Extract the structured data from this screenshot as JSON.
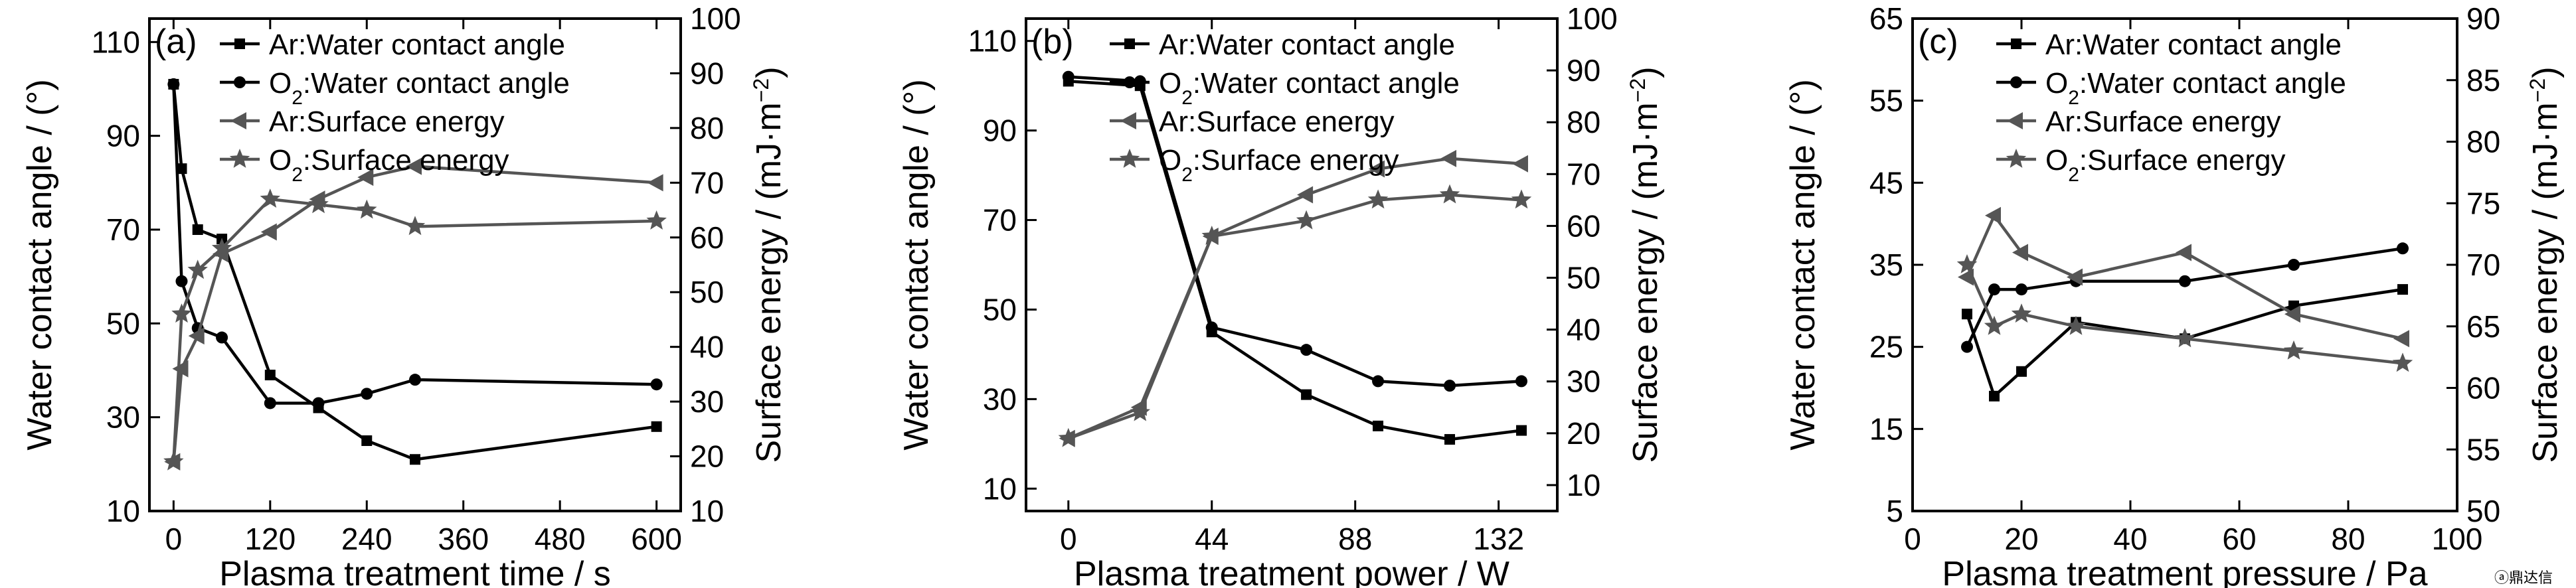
{
  "chart_data": [
    {
      "type": "line",
      "panel_label": "(a)",
      "xlabel": "Plasma treatment time / s",
      "ylabel_left": "Water contact angle / (°)",
      "ylabel_right": "Surface energy / (mJ·m⁻²)",
      "xlim": [
        -30,
        630
      ],
      "xticks": [
        0,
        120,
        240,
        360,
        480,
        600
      ],
      "ylim_left": [
        10,
        115
      ],
      "yticks_left": [
        10,
        30,
        50,
        70,
        90,
        110
      ],
      "ylim_right": [
        10,
        100
      ],
      "yticks_right": [
        10,
        20,
        30,
        40,
        50,
        60,
        70,
        80,
        90,
        100
      ],
      "legend_placement": "top-left",
      "grid": false,
      "series": [
        {
          "name": "Ar:Water contact angle",
          "axis": "left",
          "marker": "square",
          "color": "#000000",
          "x": [
            0,
            10,
            30,
            60,
            120,
            180,
            240,
            300,
            600
          ],
          "y": [
            101,
            83,
            70,
            68,
            39,
            32,
            25,
            21,
            28
          ]
        },
        {
          "name": "O2:Water contact angle",
          "axis": "left",
          "marker": "circle",
          "color": "#000000",
          "x": [
            0,
            10,
            30,
            60,
            120,
            180,
            240,
            300,
            600
          ],
          "y": [
            101,
            59,
            49,
            47,
            33,
            33,
            35,
            38,
            37
          ]
        },
        {
          "name": "Ar:Surface energy",
          "axis": "right",
          "marker": "triangle-left",
          "color": "#555555",
          "x": [
            0,
            10,
            30,
            60,
            120,
            180,
            240,
            300,
            600
          ],
          "y": [
            19,
            36,
            42,
            57,
            61,
            67,
            71,
            73,
            70
          ]
        },
        {
          "name": "O2:Surface energy",
          "axis": "right",
          "marker": "star",
          "color": "#555555",
          "x": [
            0,
            10,
            30,
            60,
            120,
            180,
            240,
            300,
            600
          ],
          "y": [
            19,
            46,
            54,
            58,
            67,
            66,
            65,
            62,
            63
          ]
        }
      ]
    },
    {
      "type": "line",
      "panel_label": "(b)",
      "xlabel": "Plasma treatment power / W",
      "ylabel_left": "Water contact angle / (°)",
      "ylabel_right": "Surface energy / (mJ·m⁻²)",
      "xlim": [
        -13,
        150
      ],
      "xticks": [
        0,
        44,
        88,
        132
      ],
      "ylim_left": [
        5,
        115
      ],
      "yticks_left": [
        10,
        30,
        50,
        70,
        90,
        110
      ],
      "ylim_right": [
        5,
        100
      ],
      "yticks_right": [
        10,
        20,
        30,
        40,
        50,
        60,
        70,
        80,
        90,
        100
      ],
      "legend_placement": "top-right",
      "grid": false,
      "series": [
        {
          "name": "Ar:Water contact angle",
          "axis": "left",
          "marker": "square",
          "color": "#000000",
          "x": [
            0,
            22,
            44,
            73,
            95,
            117,
            139
          ],
          "y": [
            101,
            100,
            45,
            31,
            24,
            21,
            23
          ]
        },
        {
          "name": "O2:Water contact angle",
          "axis": "left",
          "marker": "circle",
          "color": "#000000",
          "x": [
            0,
            22,
            44,
            73,
            95,
            117,
            139
          ],
          "y": [
            102,
            101,
            46,
            41,
            34,
            33,
            34
          ]
        },
        {
          "name": "Ar:Surface energy",
          "axis": "right",
          "marker": "triangle-left",
          "color": "#555555",
          "x": [
            0,
            22,
            44,
            73,
            95,
            117,
            139
          ],
          "y": [
            19,
            25,
            58,
            66,
            71,
            73,
            72
          ]
        },
        {
          "name": "O2:Surface energy",
          "axis": "right",
          "marker": "star",
          "color": "#555555",
          "x": [
            0,
            22,
            44,
            73,
            95,
            117,
            139
          ],
          "y": [
            19,
            24,
            58,
            61,
            65,
            66,
            65
          ]
        }
      ]
    },
    {
      "type": "line",
      "panel_label": "(c)",
      "xlabel": "Plasma treatment pressure / Pa",
      "ylabel_left": "Water contact angle / (°)",
      "ylabel_right": "Surface energy / (mJ·m⁻²)",
      "xlim": [
        0,
        100
      ],
      "xticks": [
        0,
        20,
        40,
        60,
        80,
        100
      ],
      "ylim_left": [
        5,
        65
      ],
      "yticks_left": [
        5,
        15,
        25,
        35,
        45,
        55,
        65
      ],
      "ylim_right": [
        50,
        90
      ],
      "yticks_right": [
        50,
        55,
        60,
        65,
        70,
        75,
        80,
        85,
        90
      ],
      "legend_placement": "top-right",
      "grid": false,
      "series": [
        {
          "name": "Ar:Water contact angle",
          "axis": "left",
          "marker": "square",
          "color": "#000000",
          "x": [
            10,
            15,
            20,
            30,
            50,
            70,
            90
          ],
          "y": [
            29,
            19,
            22,
            28,
            26,
            30,
            32
          ]
        },
        {
          "name": "O2:Water contact angle",
          "axis": "left",
          "marker": "circle",
          "color": "#000000",
          "x": [
            10,
            15,
            20,
            30,
            50,
            70,
            90
          ],
          "y": [
            25,
            32,
            32,
            33,
            33,
            35,
            37
          ]
        },
        {
          "name": "Ar:Surface energy",
          "axis": "right",
          "marker": "triangle-left",
          "color": "#555555",
          "x": [
            10,
            15,
            20,
            30,
            50,
            70,
            90
          ],
          "y": [
            69,
            74,
            71,
            69,
            71,
            66,
            64
          ]
        },
        {
          "name": "O2:Surface energy",
          "axis": "right",
          "marker": "star",
          "color": "#555555",
          "x": [
            10,
            15,
            20,
            30,
            50,
            70,
            90
          ],
          "y": [
            70,
            65,
            66,
            65,
            64,
            63,
            62
          ]
        }
      ]
    }
  ],
  "legend_entries": [
    {
      "prefix": "Ar",
      "sub": "",
      "text": ":Water contact angle",
      "marker": "square"
    },
    {
      "prefix": "O",
      "sub": "2",
      "text": ":Water contact angle",
      "marker": "circle"
    },
    {
      "prefix": "Ar",
      "sub": "",
      "text": ":Surface energy",
      "marker": "triangle-left"
    },
    {
      "prefix": "O",
      "sub": "2",
      "text": ":Surface energy",
      "marker": "star"
    }
  ],
  "watermark": "ⓐ鼎达信"
}
